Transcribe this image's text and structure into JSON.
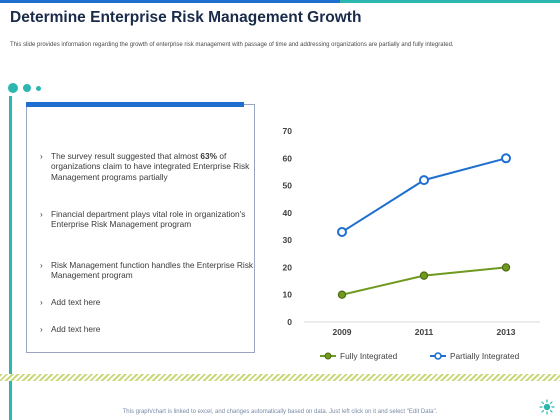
{
  "slide": {
    "title": "Determine Enterprise Risk Management Growth",
    "subtitle": "This slide provides information regarding the growth of enterprise risk management with passage of time and addressing organizations are partially and fully integrated.",
    "footer_note": "This graph/chart is linked to excel, and changes automatically based on data. Just left click on it and select \"Edit Data\"."
  },
  "bullets": [
    {
      "pre": "The survey result suggested that almost ",
      "bold": "63%",
      "post": " of organizations claim to have integrated Enterprise Risk Management programs partially"
    },
    {
      "pre": "Financial department plays vital role in organization's Enterprise Risk Management program",
      "bold": "",
      "post": ""
    },
    {
      "pre": "Risk Management function handles the Enterprise Risk Management program",
      "bold": "",
      "post": ""
    },
    {
      "pre": "Add text here",
      "bold": "",
      "post": ""
    },
    {
      "pre": "Add text here",
      "bold": "",
      "post": ""
    }
  ],
  "chart_data": {
    "type": "line",
    "x": [
      "2009",
      "2011",
      "2013"
    ],
    "series": [
      {
        "name": "Fully Integrated",
        "values": [
          10,
          17,
          20
        ],
        "color": "#6f9a1f"
      },
      {
        "name": "Partially Integrated",
        "values": [
          33,
          52,
          60
        ],
        "color": "#1f6fd1"
      }
    ],
    "ylim": [
      0,
      70
    ],
    "yticks": [
      0,
      10,
      20,
      30,
      40,
      50,
      60,
      70
    ],
    "grid": false,
    "legend": "bottom"
  },
  "colors": {
    "accent_blue": "#1f6fd1",
    "accent_teal": "#2bb6b0",
    "title_navy": "#1a2b4a"
  }
}
